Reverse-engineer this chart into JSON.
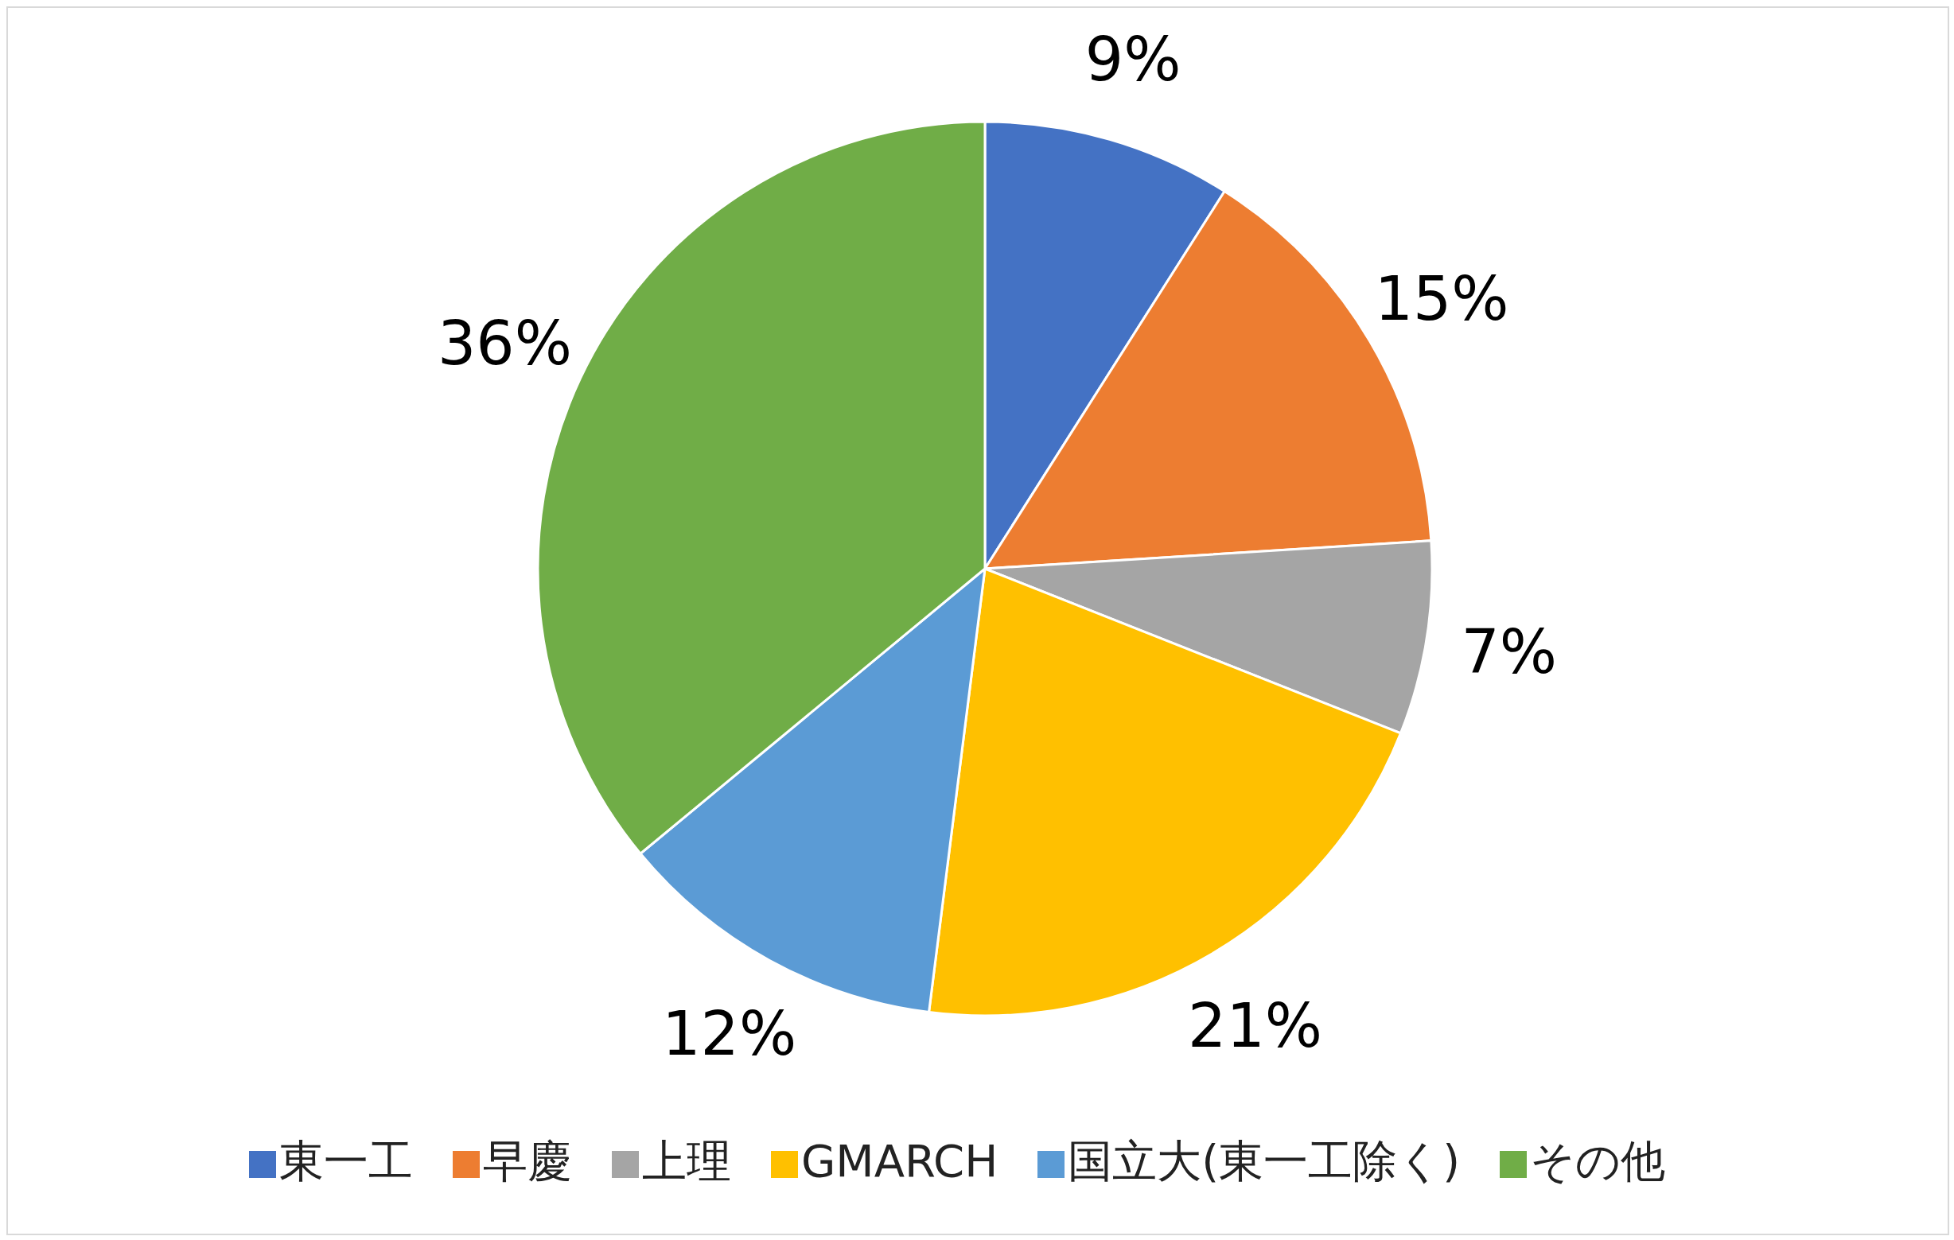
{
  "chart_data": {
    "type": "pie",
    "categories": [
      "東一工",
      "早慶",
      "上理",
      "GMARCH",
      "国立大(東一工除く)",
      "その他"
    ],
    "values": [
      9,
      15,
      7,
      21,
      12,
      36
    ],
    "value_labels": [
      "9%",
      "15%",
      "7%",
      "21%",
      "12%",
      "36%"
    ],
    "colors": [
      "#4472c4",
      "#ed7d31",
      "#a5a5a5",
      "#ffc000",
      "#5b9bd5",
      "#70ad47"
    ],
    "legend": "bottom"
  }
}
